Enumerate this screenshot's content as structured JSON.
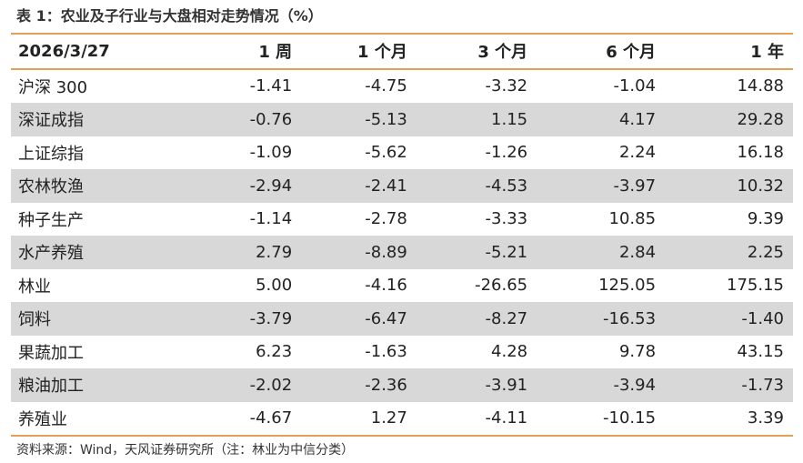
{
  "title": "表 1：农业及子行业与大盘相对走势情况（%）",
  "table": {
    "header": [
      "2026/3/27",
      "1 周",
      "1 个月",
      "3 个月",
      "6 个月",
      "1 年"
    ],
    "rows": [
      [
        "沪深 300",
        "-1.41",
        "-4.75",
        "-3.32",
        "-1.04",
        "14.88"
      ],
      [
        "深证成指",
        "-0.76",
        "-5.13",
        "1.15",
        "4.17",
        "29.28"
      ],
      [
        "上证综指",
        "-1.09",
        "-5.62",
        "-1.26",
        "2.24",
        "16.18"
      ],
      [
        "农林牧渔",
        "-2.94",
        "-2.41",
        "-4.53",
        "-3.97",
        "10.32"
      ],
      [
        "种子生产",
        "-1.14",
        "-2.78",
        "-3.33",
        "10.85",
        "9.39"
      ],
      [
        "水产养殖",
        "2.79",
        "-8.89",
        "-5.21",
        "2.84",
        "2.25"
      ],
      [
        "林业",
        "5.00",
        "-4.16",
        "-26.65",
        "125.05",
        "175.15"
      ],
      [
        "饲料",
        "-3.79",
        "-6.47",
        "-8.27",
        "-16.53",
        "-1.40"
      ],
      [
        "果蔬加工",
        "6.23",
        "-1.63",
        "4.28",
        "9.78",
        "43.15"
      ],
      [
        "粮油加工",
        "-2.02",
        "-2.36",
        "-3.91",
        "-3.94",
        "-1.73"
      ],
      [
        "养殖业",
        "-4.67",
        "1.27",
        "-4.11",
        "-10.15",
        "3.39"
      ]
    ]
  },
  "source": "资料来源：Wind，天风证券研究所（注：林业为中信分类）"
}
